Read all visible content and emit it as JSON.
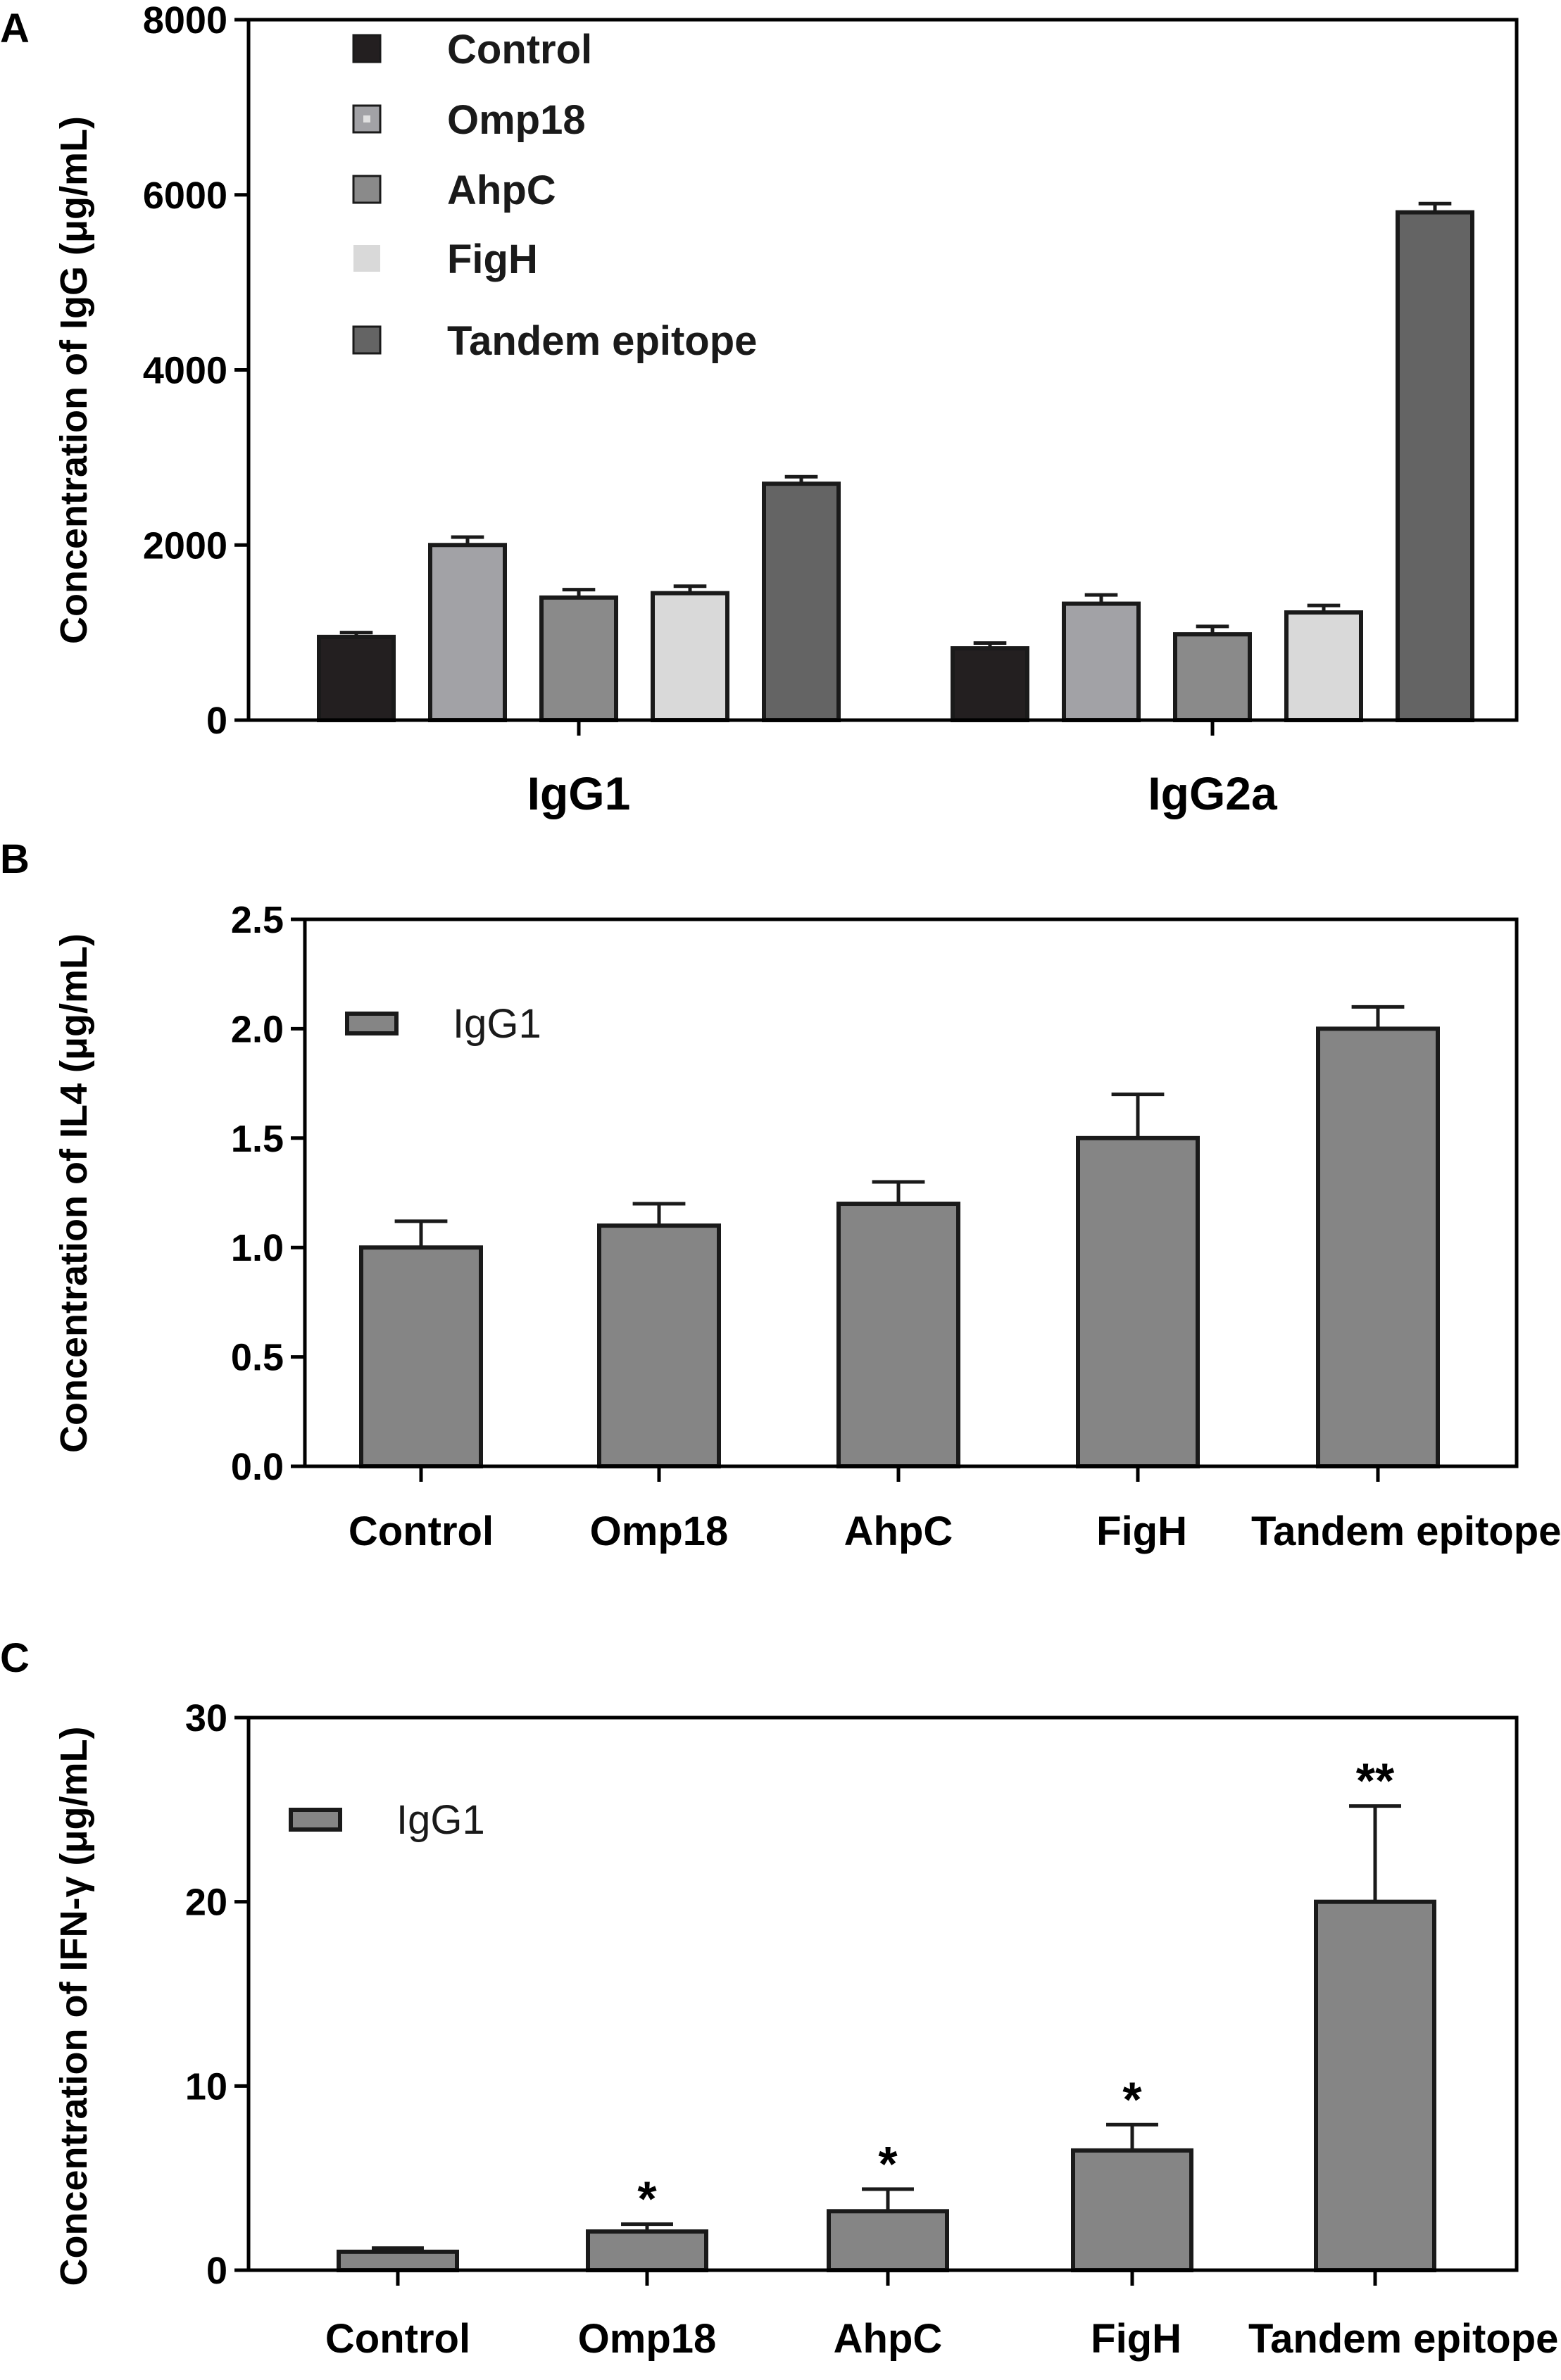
{
  "chart_data": [
    {
      "panel_label": "A",
      "type": "bar",
      "ylabel": "Concentration of IgG (μg/mL)",
      "ylim": [
        0,
        8000
      ],
      "yticks": [
        "0",
        "2000",
        "4000",
        "6000",
        "8000"
      ],
      "categories": [
        "IgG1",
        "IgG2a"
      ],
      "series": [
        {
          "name": "Control",
          "values": [
            950,
            820
          ],
          "errors": [
            50,
            60
          ],
          "color": "#231f20",
          "marker": "square"
        },
        {
          "name": "Omp18",
          "values": [
            2000,
            1330
          ],
          "errors": [
            90,
            100
          ],
          "color": "#a2a2a6",
          "marker": "square-dot"
        },
        {
          "name": "AhpC",
          "values": [
            1400,
            980
          ],
          "errors": [
            90,
            90
          ],
          "color": "#8a8a8a",
          "marker": "square"
        },
        {
          "name": "FigH",
          "values": [
            1450,
            1230
          ],
          "errors": [
            80,
            80
          ],
          "color": "#d9d9d9",
          "marker": "square"
        },
        {
          "name": "Tandem epitope",
          "values": [
            2700,
            5800
          ],
          "errors": [
            80,
            100
          ],
          "color": "#646464",
          "marker": "square"
        }
      ],
      "legend_position": "top-left"
    },
    {
      "panel_label": "B",
      "type": "bar",
      "ylabel": "Concentration of IL4 (μg/mL)",
      "ylim": [
        0,
        2.5
      ],
      "yticks": [
        "0.0",
        "0.5",
        "1.0",
        "1.5",
        "2.0",
        "2.5"
      ],
      "categories": [
        "Control",
        "Omp18",
        "AhpC",
        "FigH",
        "Tandem epitope"
      ],
      "series": [
        {
          "name": "IgG1",
          "values": [
            1.0,
            1.1,
            1.2,
            1.5,
            2.0
          ],
          "errors": [
            0.12,
            0.1,
            0.1,
            0.2,
            0.1
          ],
          "color": "#858585"
        }
      ],
      "annotations": [
        "",
        "",
        "",
        "",
        ""
      ],
      "legend_position": "top-left"
    },
    {
      "panel_label": "C",
      "type": "bar",
      "ylabel": "Concentration of IFN-γ (μg/mL)",
      "ylim": [
        0,
        30
      ],
      "yticks": [
        "0",
        "10",
        "20",
        "30"
      ],
      "categories": [
        "Control",
        "Omp18",
        "AhpC",
        "FigH",
        "Tandem epitope"
      ],
      "series": [
        {
          "name": "IgG1",
          "values": [
            1.0,
            2.1,
            3.2,
            6.5,
            20
          ],
          "errors": [
            0.2,
            0.4,
            1.2,
            1.4,
            5.2
          ],
          "color": "#858585"
        }
      ],
      "annotations": [
        "",
        "*",
        "*",
        "*",
        "**"
      ],
      "legend_position": "top-left"
    }
  ]
}
